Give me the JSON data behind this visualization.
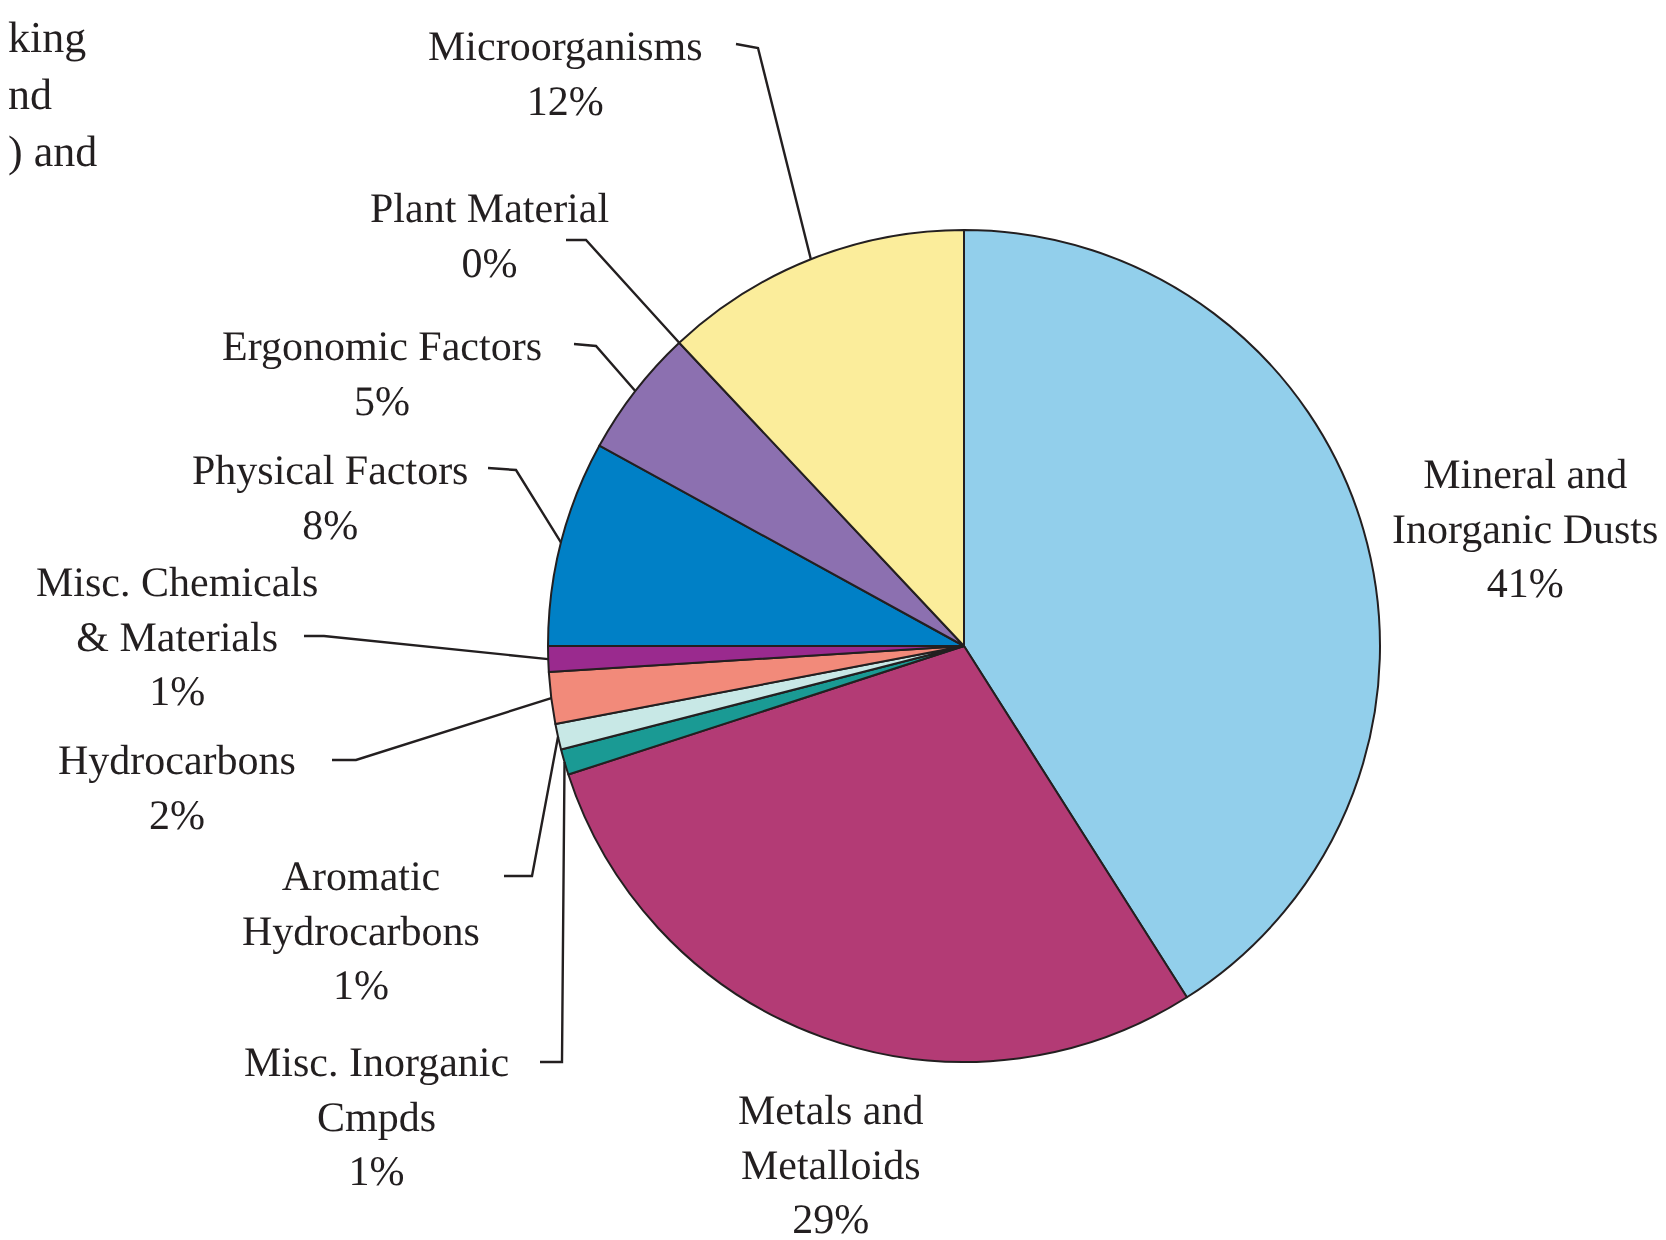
{
  "chart_data": {
    "type": "pie",
    "categories": [
      "Mineral and\nInorganic Dusts",
      "Metals and\nMetalloids",
      "Misc. Inorganic\nCmpds",
      "Aromatic\nHydrocarbons",
      "Hydrocarbons",
      "Misc. Chemicals\n& Materials",
      "Physical Factors",
      "Ergonomic Factors",
      "Plant Material",
      "Microorganisms"
    ],
    "values": [
      41,
      29,
      1,
      1,
      2,
      1,
      8,
      5,
      0,
      12
    ],
    "value_labels": [
      "41%",
      "29%",
      "1%",
      "1%",
      "2%",
      "1%",
      "8%",
      "5%",
      "0%",
      "12%"
    ],
    "colors": [
      "#92cfeb",
      "#b33b75",
      "#1a9a94",
      "#c8e8e6",
      "#f28a7a",
      "#9a2a8e",
      "#0080c6",
      "#8c70b0",
      "#2a2a80",
      "#fbed9b"
    ],
    "annotations": [
      "king\nnd\n) and"
    ]
  }
}
